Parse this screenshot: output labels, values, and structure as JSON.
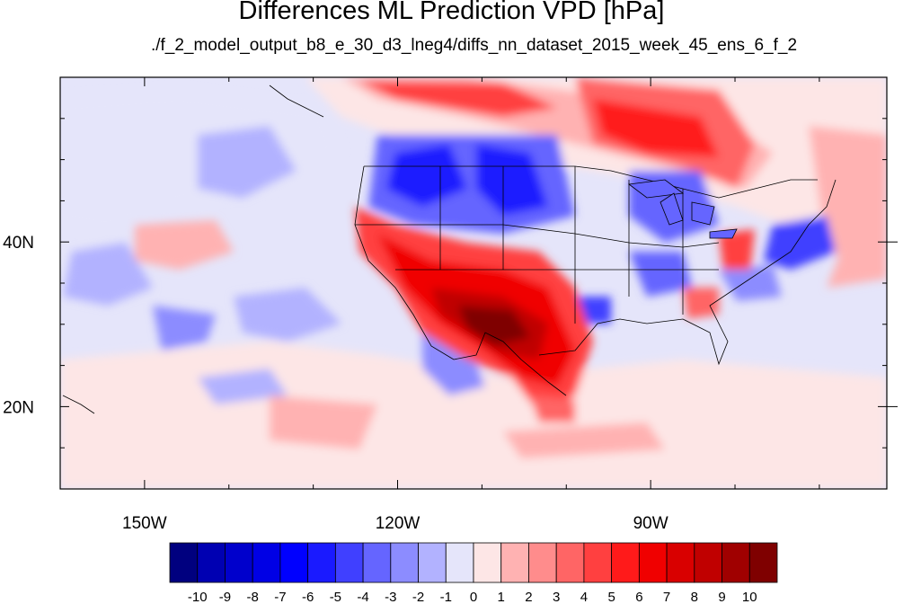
{
  "title": "Differences ML Prediction VPD [hPa]",
  "subtitle": "./f_2_model_output_b8_e_30_d3_lneg4/diffs_nn_dataset_2015_week_45_ens_6_f_2",
  "map": {
    "lon_range": [
      -160,
      -62
    ],
    "lat_range": [
      10,
      60
    ],
    "lon_labels": [
      {
        "lon": -150,
        "text": "150W"
      },
      {
        "lon": -120,
        "text": "120W"
      },
      {
        "lon": -90,
        "text": "90W"
      }
    ],
    "lat_labels": [
      {
        "lat": 40,
        "text": "40N"
      },
      {
        "lat": 20,
        "text": "20N"
      }
    ]
  },
  "colorbar": {
    "colors": [
      "#00007f",
      "#0000b2",
      "#0000cc",
      "#0000e5",
      "#0000ff",
      "#1a1aff",
      "#4040ff",
      "#6565ff",
      "#8c8cff",
      "#b2b2ff",
      "#e5e5fa",
      "#fde6e6",
      "#ffb2b2",
      "#ff8c8c",
      "#ff6565",
      "#ff4040",
      "#ff1a1a",
      "#f00000",
      "#d90000",
      "#c00000",
      "#a00000",
      "#7f0000"
    ],
    "labels": [
      "-10",
      "-9",
      "-8",
      "-7",
      "-6",
      "-5",
      "-4",
      "-3",
      "-2",
      "-1",
      "0",
      "1",
      "2",
      "3",
      "4",
      "5",
      "6",
      "7",
      "8",
      "9",
      "10"
    ]
  }
}
